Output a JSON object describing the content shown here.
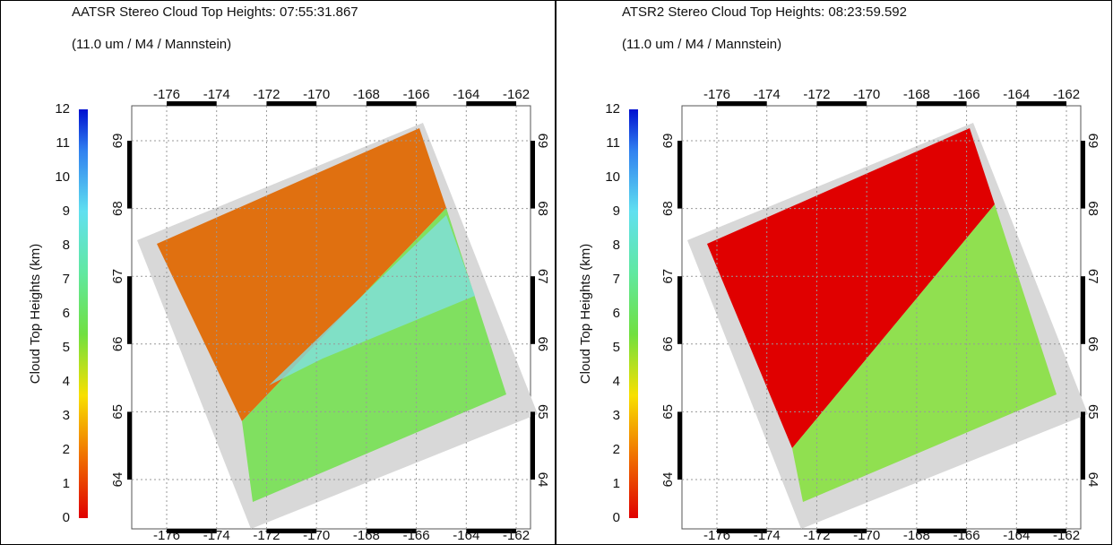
{
  "panels": [
    {
      "title": "AATSR Stereo Cloud Top Heights: 07:55:31.867",
      "subtitle": "(11.0 um / M4 / Mannstein)",
      "colorbar_label": "Cloud Top Heights (km)",
      "colorbar_ticks": [
        0,
        1,
        2,
        3,
        4,
        5,
        6,
        7,
        8,
        9,
        10,
        11,
        12
      ],
      "lon_ticks": [
        -176,
        -174,
        -172,
        -170,
        -168,
        -166,
        -164,
        -162
      ],
      "lat_ticks": [
        64,
        65,
        66,
        67,
        68,
        69
      ]
    },
    {
      "title": "ATSR2 Stereo Cloud Top Heights: 08:23:59.592",
      "subtitle": "(11.0 um / M4 / Mannstein)",
      "colorbar_label": "Cloud Top Heights (km)",
      "colorbar_ticks": [
        0,
        1,
        2,
        3,
        4,
        5,
        6,
        7,
        8,
        9,
        10,
        11,
        12
      ],
      "lon_ticks": [
        -176,
        -174,
        -172,
        -170,
        -168,
        -166,
        -164,
        -162
      ],
      "lat_ticks": [
        64,
        65,
        66,
        67,
        68,
        69
      ]
    }
  ]
}
